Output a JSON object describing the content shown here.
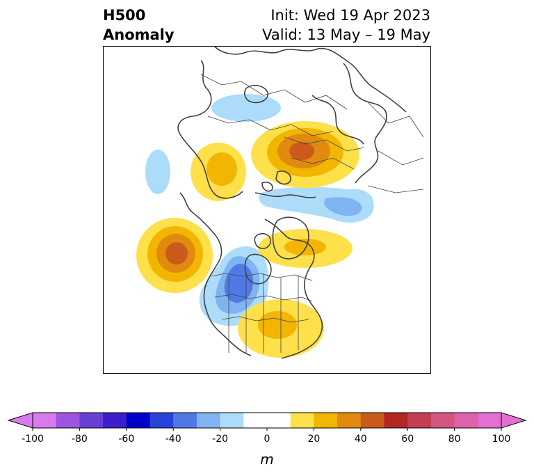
{
  "header": {
    "field": "H500",
    "product": "Anomaly",
    "init": "Init: Wed 19 Apr 2023",
    "valid": "Valid: 13 May – 19 May"
  },
  "colorbar": {
    "unit": "m",
    "tick_labels": [
      "-100",
      "-80",
      "-60",
      "-40",
      "-20",
      "0",
      "20",
      "40",
      "60",
      "80",
      "100"
    ],
    "bins": [
      {
        "lo": -100,
        "hi": -90,
        "color": "#d77aeb"
      },
      {
        "lo": -90,
        "hi": -80,
        "color": "#9b55e0"
      },
      {
        "lo": -80,
        "hi": -70,
        "color": "#6a3fd6"
      },
      {
        "lo": -70,
        "hi": -60,
        "color": "#3b1fcc"
      },
      {
        "lo": -60,
        "hi": -50,
        "color": "#0000cc"
      },
      {
        "lo": -50,
        "hi": -40,
        "color": "#2743d9"
      },
      {
        "lo": -40,
        "hi": -30,
        "color": "#5179e6"
      },
      {
        "lo": -30,
        "hi": -20,
        "color": "#7fb3f2"
      },
      {
        "lo": -20,
        "hi": -10,
        "color": "#addcfa"
      },
      {
        "lo": -10,
        "hi": 10,
        "color": "#ffffff"
      },
      {
        "lo": 10,
        "hi": 20,
        "color": "#fde04a"
      },
      {
        "lo": 20,
        "hi": 30,
        "color": "#f2b500"
      },
      {
        "lo": 30,
        "hi": 40,
        "color": "#e08a10"
      },
      {
        "lo": 40,
        "hi": 50,
        "color": "#cc5a1a"
      },
      {
        "lo": 50,
        "hi": 60,
        "color": "#b32626"
      },
      {
        "lo": 60,
        "hi": 70,
        "color": "#c43d55"
      },
      {
        "lo": 70,
        "hi": 80,
        "color": "#d45580"
      },
      {
        "lo": 80,
        "hi": 90,
        "color": "#de62aa"
      },
      {
        "lo": 90,
        "hi": 100,
        "color": "#e36fd2"
      }
    ],
    "extend_low_color": "#d77aeb",
    "extend_high_color": "#e36fd2"
  }
}
